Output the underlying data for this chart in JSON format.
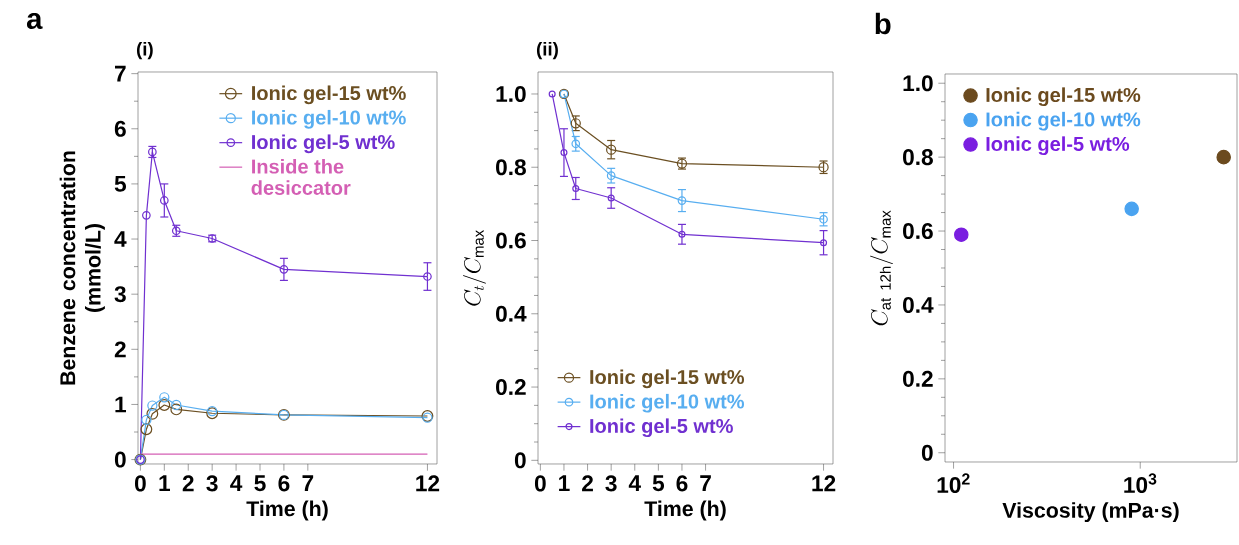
{
  "chart_data": [
    {
      "type": "line",
      "title": "(i)",
      "xlabel": "Time (h)",
      "ylabel": "Benzene concentration (mmol/L)",
      "annotations": [
        "a"
      ],
      "xlim": [
        -0.1,
        12.4
      ],
      "ylim": [
        -0.08,
        7.03
      ],
      "xticks": [
        0,
        1,
        2,
        3,
        4,
        5,
        6,
        7,
        12
      ],
      "yticks": [
        0,
        1,
        2,
        3,
        4,
        5,
        6,
        7
      ],
      "marker": "circle",
      "legend": "top right",
      "series": [
        {
          "name": "Ionic gel-15 wt%",
          "color": "#6b4f22",
          "x": [
            0,
            0.25,
            0.5,
            1,
            1.5,
            3,
            6,
            12
          ],
          "values": [
            0,
            0.55,
            0.83,
            0.99,
            0.91,
            0.84,
            0.81,
            0.79
          ]
        },
        {
          "name": "Ionic gel-10 wt%",
          "color": "#58aef0",
          "x": [
            0,
            0.25,
            0.5,
            1,
            1.5,
            3,
            6,
            12
          ],
          "values": [
            0,
            0.72,
            0.98,
            1.13,
            0.99,
            0.88,
            0.81,
            0.76
          ]
        },
        {
          "name": "Ionic gel-5 wt%",
          "color": "#7030d0",
          "x": [
            0,
            0.25,
            0.5,
            1,
            1.5,
            3,
            6,
            12
          ],
          "values": [
            0,
            4.43,
            5.58,
            4.7,
            4.15,
            4.01,
            3.45,
            3.32
          ],
          "errors": [
            null,
            null,
            0.1,
            0.3,
            0.1,
            0.06,
            0.2,
            0.25
          ]
        },
        {
          "name": "Inside the desiccator",
          "color": "#d45fb4",
          "marker": "none",
          "x": [
            0,
            12
          ],
          "values": [
            0.1,
            0.1
          ]
        }
      ]
    },
    {
      "type": "line",
      "title": "(ii)",
      "xlabel": "Time (h)",
      "ylabel": "C_{t}/C_{\\mathrm{max}}",
      "xlim": [
        -0.1,
        12.4
      ],
      "ylim": [
        -0.01,
        1.06
      ],
      "xticks": [
        0,
        1,
        2,
        3,
        4,
        5,
        6,
        7,
        12
      ],
      "yticks": [
        0,
        0.2,
        0.4,
        0.6,
        0.8,
        {
          "value": 1,
          "label": "1.0"
        }
      ],
      "marker": "circle",
      "legend": "bottom left",
      "series": [
        {
          "name": "Ionic gel-15 wt%",
          "color": "#6b4f22",
          "x": [
            1,
            1.5,
            3,
            6,
            12
          ],
          "values": [
            1.0,
            0.92,
            0.848,
            0.81,
            0.8
          ],
          "errors": [
            null,
            0.02,
            0.025,
            0.015,
            0.017
          ]
        },
        {
          "name": "Ionic gel-10 wt%",
          "color": "#58aef0",
          "x": [
            1,
            1.5,
            3,
            6,
            12
          ],
          "values": [
            1.0,
            0.864,
            0.777,
            0.709,
            0.658
          ],
          "errors": [
            null,
            0.02,
            0.02,
            0.03,
            0.018
          ]
        },
        {
          "name": "Ionic gel-5 wt%",
          "color": "#7030d0",
          "x": [
            0.5,
            1,
            1.5,
            3,
            6,
            12
          ],
          "values": [
            1.0,
            0.84,
            0.742,
            0.716,
            0.617,
            0.594
          ],
          "errors": [
            null,
            0.065,
            0.03,
            0.028,
            0.027,
            0.033
          ]
        }
      ]
    },
    {
      "type": "scatter",
      "xlabel": "Viscosity (mPa·s)",
      "ylabel": "C_{\\mathrm{at\\ 12h}}/C_{\\mathrm{max}}",
      "annotations": [
        "b"
      ],
      "log": "x",
      "xlim": [
        90,
        3300
      ],
      "ylim": [
        -0.025,
        1.025
      ],
      "xticks": [
        {
          "value": 100,
          "label": "10$^{2}$"
        },
        {
          "value": 1000,
          "label": "10$^{3}$"
        }
      ],
      "yticks": [
        0,
        0.2,
        0.4,
        0.6,
        0.8,
        {
          "value": 1,
          "label": "1.0"
        }
      ],
      "marker": "circle",
      "legend": "top left",
      "series": [
        {
          "name": "Ionic gel-15 wt%",
          "color": "#6b4a1e",
          "x": [
            2800
          ],
          "values": [
            0.8
          ]
        },
        {
          "name": "Ionic gel-10 wt%",
          "color": "#4aa3f0",
          "x": [
            900
          ],
          "values": [
            0.66
          ]
        },
        {
          "name": "Ionic gel-5 wt%",
          "color": "#7a1ee0",
          "x": [
            110
          ],
          "values": [
            0.59
          ]
        }
      ]
    }
  ]
}
